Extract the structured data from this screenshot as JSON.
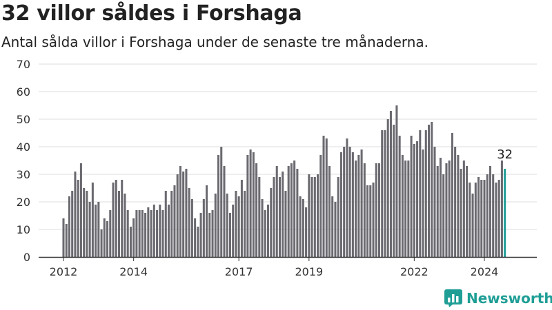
{
  "title": "32 villor såldes i Forshaga",
  "subtitle": "Antal sålda villor i Forshaga under de senaste tre månaderna.",
  "brand": {
    "name": "Newsworthy",
    "logo_icon": "newsworthy-logo-icon"
  },
  "colors": {
    "bar": "#6b6a70",
    "highlight": "#1f9e96",
    "grid": "#dddddd",
    "axis": "#333333"
  },
  "chart_data": {
    "type": "bar",
    "title": "32 villor såldes i Forshaga",
    "xlabel": "",
    "ylabel": "",
    "ylim": [
      0,
      70
    ],
    "yticks": [
      0,
      10,
      20,
      30,
      40,
      50,
      60,
      70
    ],
    "xlim": [
      2012,
      2025.7
    ],
    "xticks": [
      2012,
      2014,
      2017,
      2019,
      2022,
      2024
    ],
    "xtick_labels": [
      "2012",
      "2014",
      "2017",
      "2019",
      "2022",
      "2024"
    ],
    "grid": true,
    "legend": "none",
    "start_month": "2012-01",
    "values": [
      14,
      12,
      22,
      24,
      31,
      28,
      34,
      25,
      24,
      20,
      27,
      19,
      20,
      10,
      14,
      13,
      17,
      27,
      28,
      24,
      28,
      23,
      17,
      11,
      14,
      17,
      17,
      17,
      16,
      18,
      17,
      19,
      17,
      19,
      17,
      24,
      19,
      24,
      26,
      30,
      33,
      31,
      32,
      25,
      21,
      14,
      11,
      16,
      21,
      26,
      16,
      17,
      23,
      37,
      40,
      33,
      23,
      16,
      19,
      24,
      22,
      28,
      24,
      37,
      39,
      38,
      34,
      29,
      21,
      17,
      19,
      25,
      29,
      33,
      29,
      31,
      24,
      33,
      34,
      35,
      32,
      22,
      21,
      18,
      30,
      29,
      29,
      30,
      37,
      44,
      43,
      33,
      22,
      20,
      29,
      38,
      40,
      43,
      40,
      38,
      35,
      37,
      39,
      34,
      26,
      26,
      27,
      34,
      34,
      46,
      46,
      50,
      53,
      48,
      55,
      44,
      37,
      35,
      35,
      44,
      41,
      42,
      46,
      39,
      46,
      48,
      49,
      40,
      33,
      36,
      30,
      34,
      35,
      45,
      40,
      37,
      32,
      35,
      33,
      27,
      23,
      27,
      29,
      28,
      28,
      30,
      33,
      30,
      27,
      28,
      35,
      32
    ],
    "highlight": {
      "label": "32"
    }
  }
}
